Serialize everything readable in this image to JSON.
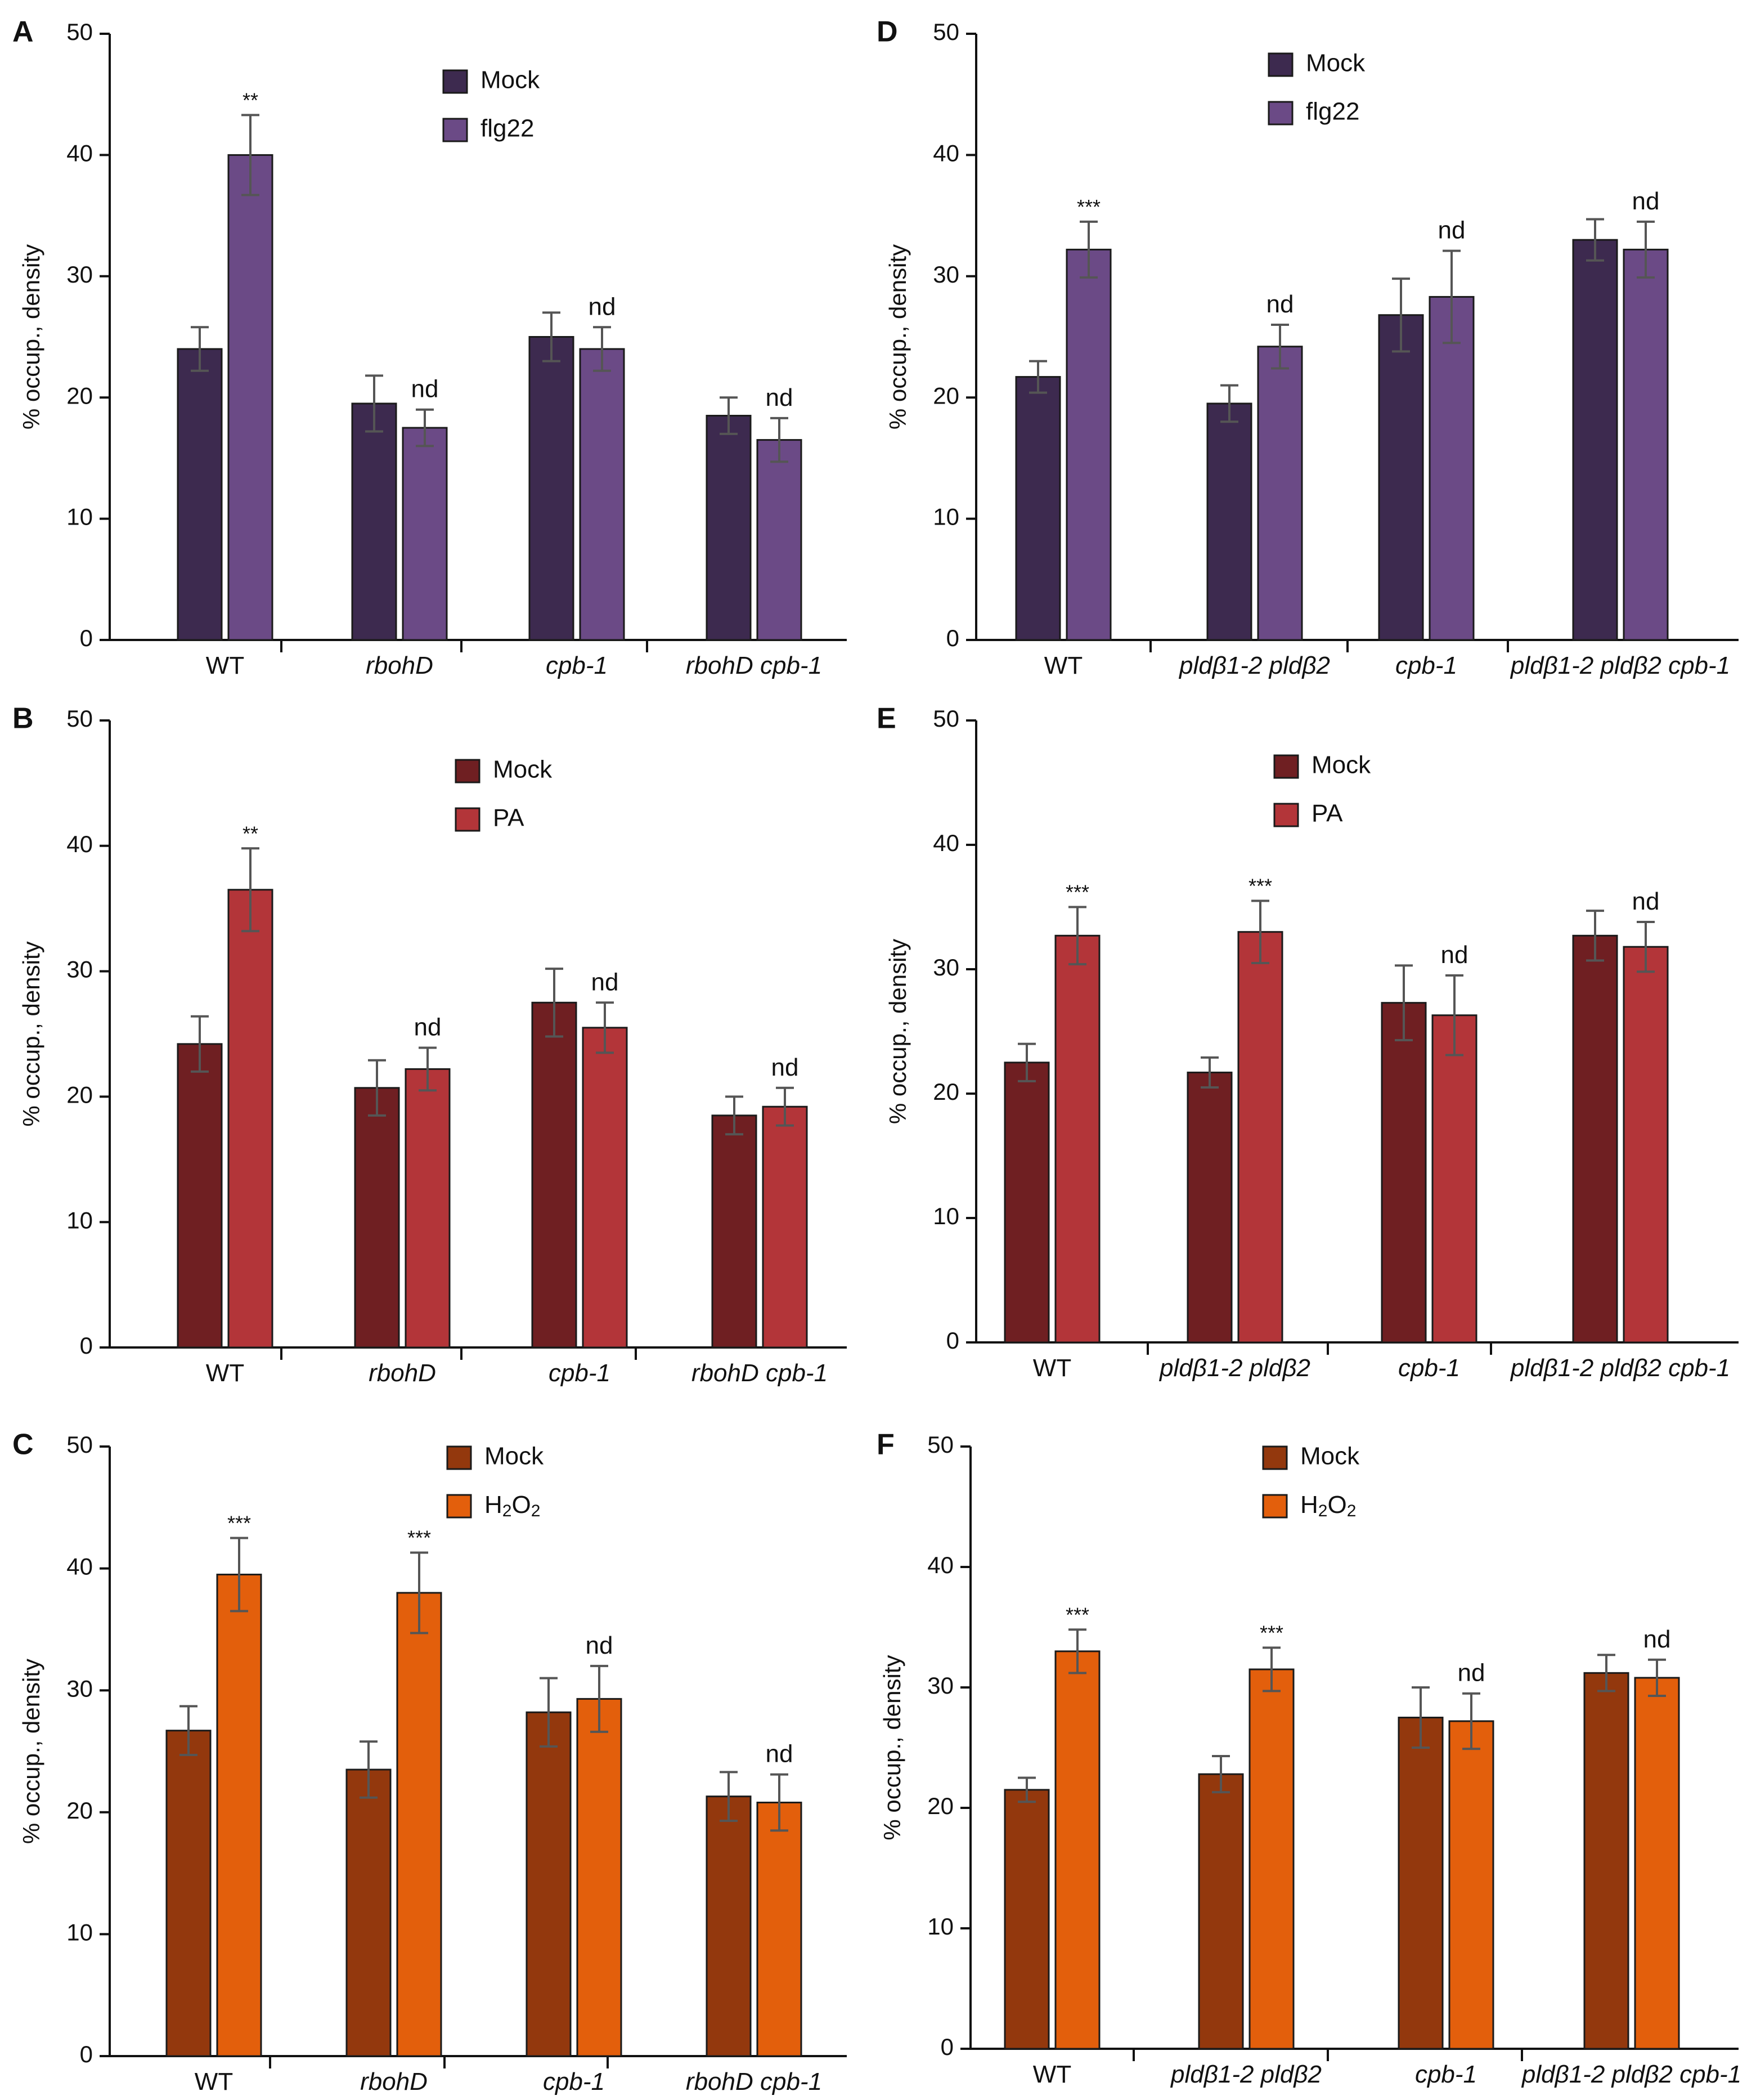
{
  "figure_title": "",
  "colors": {
    "axis": "#111111",
    "error_bar": "#555555",
    "bar_edge": "#1a1a1a",
    "flg22_mock": "#3d2a4f",
    "flg22_treat": "#6b4a86",
    "pa_mock": "#6f1f22",
    "pa_treat": "#b33539",
    "h2o2_mock": "#93380d",
    "h2o2_treat": "#e35f0c"
  },
  "chart_data": [
    {
      "panel": "A",
      "type": "bar",
      "title": "",
      "ylabel": "% occup., density",
      "xlabel": "",
      "ylim": [
        0,
        50
      ],
      "yticks": [
        "0",
        "10",
        "20",
        "30",
        "40",
        "50"
      ],
      "categories": [
        "WT",
        "rbohD",
        "cpb-1",
        "rbohD cpb-1"
      ],
      "category_italic": [
        false,
        true,
        true,
        true
      ],
      "series": [
        {
          "name": "Mock",
          "values": [
            24,
            19.5,
            25,
            18.5
          ],
          "errors": [
            1.8,
            2.3,
            2.0,
            1.5
          ],
          "color": "#3d2a4f"
        },
        {
          "name": "flg22",
          "values": [
            40,
            17.5,
            24,
            16.5
          ],
          "errors": [
            3.3,
            1.5,
            1.8,
            1.8
          ],
          "color": "#6b4a86"
        }
      ],
      "annotations": [
        "**",
        "nd",
        "nd",
        "nd"
      ],
      "legend": "top-center"
    },
    {
      "panel": "B",
      "type": "bar",
      "title": "",
      "ylabel": "% occup., density",
      "xlabel": "",
      "ylim": [
        0,
        50
      ],
      "yticks": [
        "0",
        "10",
        "20",
        "30",
        "40",
        "50"
      ],
      "categories": [
        "WT",
        "rbohD",
        "cpb-1",
        "rbohD cpb-1"
      ],
      "category_italic": [
        false,
        true,
        true,
        true
      ],
      "series": [
        {
          "name": "Mock",
          "values": [
            24.2,
            20.7,
            27.5,
            18.5
          ],
          "errors": [
            2.2,
            2.2,
            2.7,
            1.5
          ],
          "color": "#6f1f22"
        },
        {
          "name": "PA",
          "values": [
            36.5,
            22.2,
            25.5,
            19.2
          ],
          "errors": [
            3.3,
            1.7,
            2.0,
            1.5
          ],
          "color": "#b33539"
        }
      ],
      "annotations": [
        "**",
        "nd",
        "nd",
        "nd"
      ],
      "legend": "top-center"
    },
    {
      "panel": "C",
      "type": "bar",
      "title": "",
      "ylabel": "% occup., density",
      "xlabel": "",
      "ylim": [
        0,
        50
      ],
      "yticks": [
        "0",
        "10",
        "20",
        "30",
        "40",
        "50"
      ],
      "categories": [
        "WT",
        "rbohD",
        "cpb-1",
        "rbohD cpb-1"
      ],
      "category_italic": [
        false,
        true,
        true,
        true
      ],
      "series": [
        {
          "name": "Mock",
          "values": [
            26.7,
            23.5,
            28.2,
            21.3
          ],
          "errors": [
            2.0,
            2.3,
            2.8,
            2.0
          ],
          "color": "#93380d"
        },
        {
          "name": "H2O2",
          "values": [
            39.5,
            38,
            29.3,
            20.8
          ],
          "errors": [
            3.0,
            3.3,
            2.7,
            2.3
          ],
          "color": "#e35f0c"
        }
      ],
      "annotations": [
        "***",
        "***",
        "nd",
        "nd"
      ],
      "legend": "top-center"
    },
    {
      "panel": "D",
      "type": "bar",
      "title": "",
      "ylabel": "% occup., density",
      "xlabel": "",
      "ylim": [
        0,
        50
      ],
      "yticks": [
        "0",
        "10",
        "20",
        "30",
        "40",
        "50"
      ],
      "categories": [
        "WT",
        "pldβ1-2 pldβ2",
        "cpb-1",
        "pldβ1-2 pldβ2 cpb-1"
      ],
      "category_italic": [
        false,
        true,
        true,
        true
      ],
      "series": [
        {
          "name": "Mock",
          "values": [
            21.7,
            19.5,
            26.8,
            33
          ],
          "errors": [
            1.3,
            1.5,
            3.0,
            1.7
          ],
          "color": "#3d2a4f"
        },
        {
          "name": "flg22",
          "values": [
            32.2,
            24.2,
            28.3,
            32.2
          ],
          "errors": [
            2.3,
            1.8,
            3.8,
            2.3
          ],
          "color": "#6b4a86"
        }
      ],
      "annotations": [
        "***",
        "nd",
        "nd",
        "nd"
      ],
      "legend": "top-left"
    },
    {
      "panel": "E",
      "type": "bar",
      "title": "",
      "ylabel": "% occup., density",
      "xlabel": "",
      "ylim": [
        0,
        50
      ],
      "yticks": [
        "0",
        "10",
        "20",
        "30",
        "40",
        "50"
      ],
      "categories": [
        "WT",
        "pldβ1-2 pldβ2",
        "cpb-1",
        "pldβ1-2 pldβ2 cpb-1"
      ],
      "category_italic": [
        false,
        true,
        true,
        true
      ],
      "series": [
        {
          "name": "Mock",
          "values": [
            22.5,
            21.7,
            27.3,
            32.7
          ],
          "errors": [
            1.5,
            1.2,
            3.0,
            2.0
          ],
          "color": "#6f1f22"
        },
        {
          "name": "PA",
          "values": [
            32.7,
            33,
            26.3,
            31.8
          ],
          "errors": [
            2.3,
            2.5,
            3.2,
            2.0
          ],
          "color": "#b33539"
        }
      ],
      "annotations": [
        "***",
        "***",
        "nd",
        "nd"
      ],
      "legend": "top-center"
    },
    {
      "panel": "F",
      "type": "bar",
      "title": "",
      "ylabel": "% occup., density",
      "xlabel": "",
      "ylim": [
        0,
        50
      ],
      "yticks": [
        "0",
        "10",
        "20",
        "30",
        "40",
        "50"
      ],
      "categories": [
        "WT",
        "pldβ1-2 pldβ2",
        "cpb-1",
        "pldβ1-2 pldβ2 cpb-1"
      ],
      "category_italic": [
        false,
        true,
        true,
        true
      ],
      "series": [
        {
          "name": "Mock",
          "values": [
            21.5,
            22.8,
            27.5,
            31.2
          ],
          "errors": [
            1.0,
            1.5,
            2.5,
            1.5
          ],
          "color": "#93380d"
        },
        {
          "name": "H2O2",
          "values": [
            33,
            31.5,
            27.2,
            30.8
          ],
          "errors": [
            1.8,
            1.8,
            2.3,
            1.5
          ],
          "color": "#e35f0c"
        }
      ],
      "annotations": [
        "***",
        "***",
        "nd",
        "nd"
      ],
      "legend": "top-center"
    }
  ]
}
